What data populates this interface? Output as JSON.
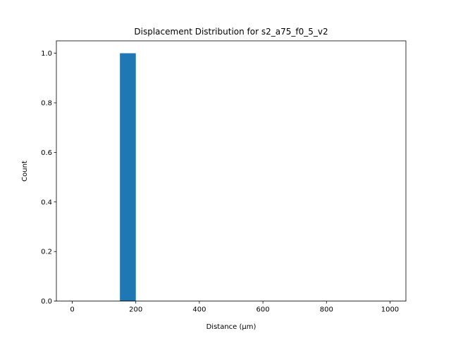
{
  "chart_data": {
    "type": "bar",
    "title": "Displacement Distribution for s2_a75_f0_5_v2",
    "xlabel": "Distance (μm)",
    "ylabel": "Count",
    "xlim": [
      -50,
      1050
    ],
    "ylim": [
      0,
      1.05
    ],
    "xticks": [
      0,
      200,
      400,
      600,
      800,
      1000
    ],
    "xtick_labels": [
      "0",
      "200",
      "400",
      "600",
      "800",
      "1000"
    ],
    "yticks": [
      0,
      0.2,
      0.4,
      0.6,
      0.8,
      1.0
    ],
    "ytick_labels": [
      "0.0",
      "0.2",
      "0.4",
      "0.6",
      "0.8",
      "1.0"
    ],
    "bins": [
      {
        "x0": 150,
        "x1": 200,
        "count": 1
      }
    ],
    "bar_color": "#1f77b4",
    "grid": false
  }
}
